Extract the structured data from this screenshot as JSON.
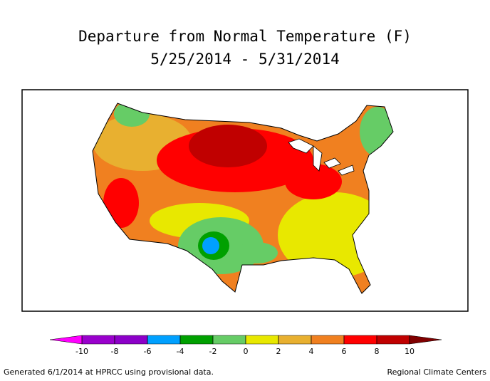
{
  "title": "Departure from Normal Temperature (F)",
  "subtitle": "5/25/2014 - 5/31/2014",
  "colorbar": {
    "lim": [
      -10,
      10
    ],
    "ticks": [
      -10,
      -8,
      -6,
      -4,
      -2,
      0,
      2,
      4,
      6,
      8,
      10
    ],
    "colors": [
      "#9900cc",
      "#8c00c8",
      "#00a0ff",
      "#00a000",
      "#66cc66",
      "#e8e800",
      "#e8b030",
      "#f08020",
      "#ff0000",
      "#c00000"
    ],
    "under_color": "#ff00ff",
    "over_color": "#800000"
  },
  "footer": {
    "left": "Generated 6/1/2014 at HPRCC using provisional data.",
    "right": "Regional Climate Centers"
  }
}
